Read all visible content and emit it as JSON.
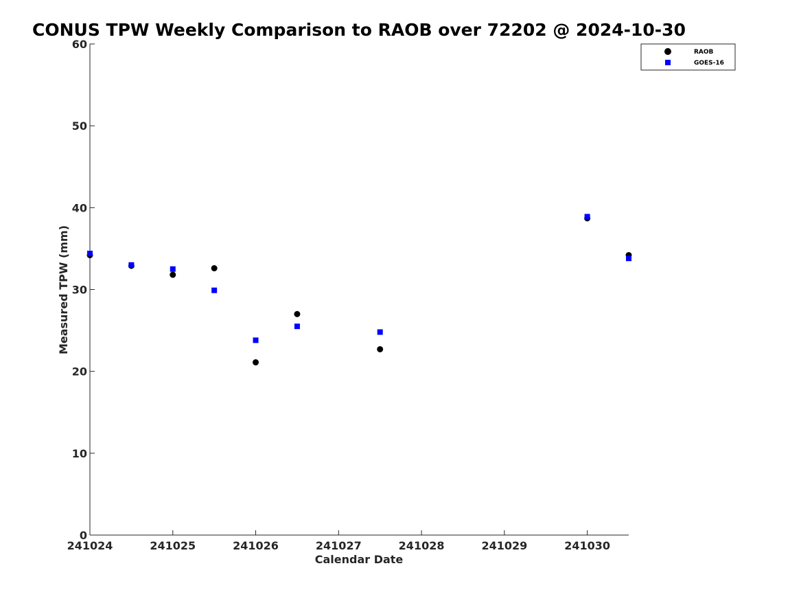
{
  "chart_data": {
    "type": "scatter",
    "title": "CONUS TPW Weekly Comparison to RAOB over 72202 @ 2024-10-30",
    "xlabel": "Calendar Date",
    "ylabel": "Measured TPW (mm)",
    "xlim": [
      241024,
      241030.5
    ],
    "ylim": [
      0,
      60
    ],
    "xticks": [
      241024,
      241025,
      241026,
      241027,
      241028,
      241029,
      241030
    ],
    "xtick_labels": [
      "241024",
      "241025",
      "241026",
      "241027",
      "241028",
      "241029",
      "241030"
    ],
    "yticks": [
      0,
      10,
      20,
      30,
      40,
      50,
      60
    ],
    "ytick_labels": [
      "0",
      "10",
      "20",
      "30",
      "40",
      "50",
      "60"
    ],
    "grid": false,
    "legend_position": "top-right",
    "series": [
      {
        "name": "RAOB",
        "marker": "circle",
        "color": "#000000",
        "x": [
          241024,
          241024.5,
          241025,
          241025.5,
          241026,
          241026.5,
          241027.5,
          241030,
          241030.5
        ],
        "y": [
          34.2,
          32.9,
          31.8,
          32.6,
          21.1,
          27.0,
          22.7,
          38.7,
          34.2
        ]
      },
      {
        "name": "GOES-16",
        "marker": "square",
        "color": "#0000ff",
        "x": [
          241024,
          241024.5,
          241025,
          241025.5,
          241026,
          241026.5,
          241027.5,
          241030,
          241030.5
        ],
        "y": [
          34.4,
          33.0,
          32.5,
          29.9,
          23.8,
          25.5,
          24.8,
          38.9,
          33.8
        ]
      }
    ]
  }
}
